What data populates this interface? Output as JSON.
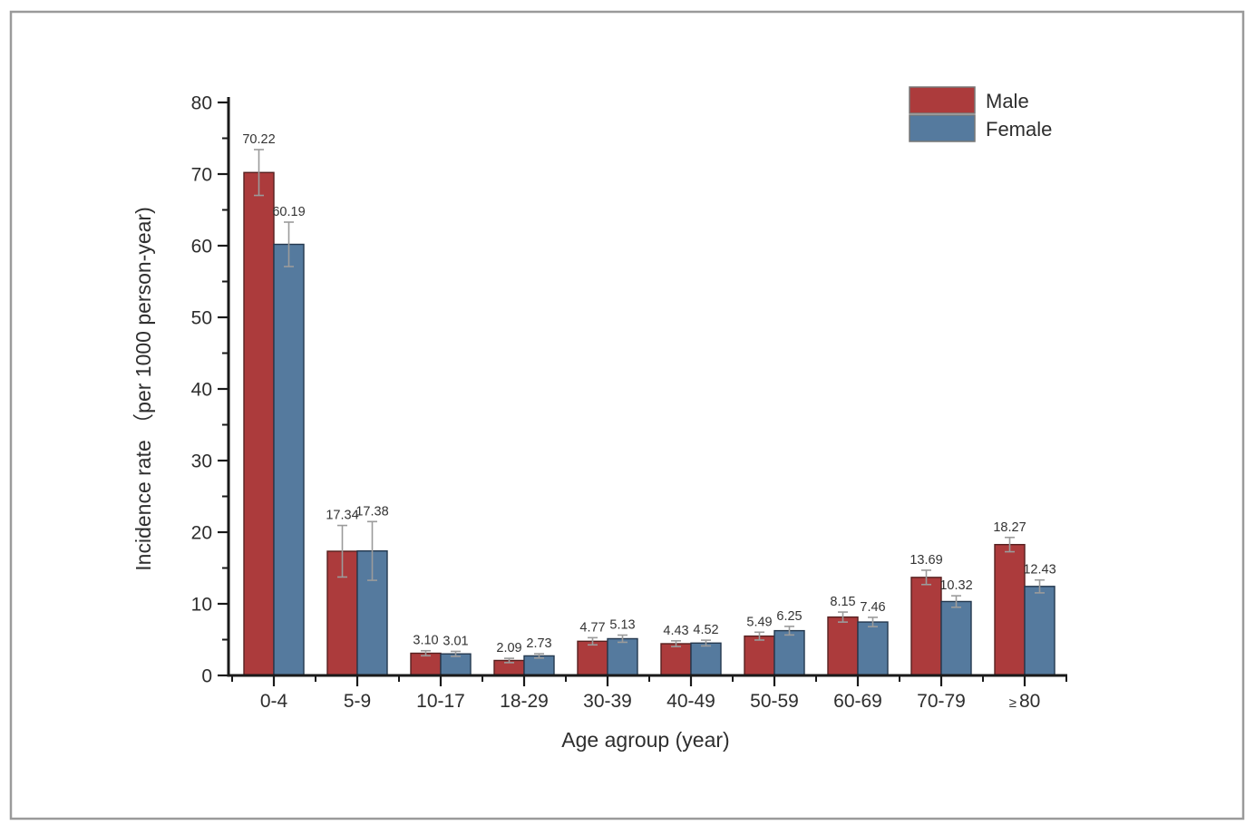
{
  "figure": {
    "border_color": "#9a9a9a",
    "background": "#ffffff"
  },
  "chart_data": {
    "type": "bar",
    "title": "",
    "xlabel": "Age agroup (year)",
    "ylabel": "Incidence rate （per 1000 person-year)",
    "categories": [
      "0-4",
      "5-9",
      "10-17",
      "18-29",
      "30-39",
      "40-49",
      "50-59",
      "60-69",
      "70-79",
      "≥80"
    ],
    "series": [
      {
        "name": "Male",
        "color": "#AC3B3C",
        "edge_color": "#56201f",
        "values": [
          70.22,
          17.34,
          3.1,
          2.09,
          4.77,
          4.43,
          5.49,
          8.15,
          13.69,
          18.27
        ],
        "value_labels": [
          "70.22",
          "17.34",
          "3.10",
          "2.09",
          "4.77",
          "4.43",
          "5.49",
          "8.15",
          "13.69",
          "18.27"
        ],
        "errors": [
          3.2,
          3.6,
          0.35,
          0.3,
          0.5,
          0.4,
          0.55,
          0.7,
          1.0,
          1.0
        ]
      },
      {
        "name": "Female",
        "color": "#557A9E",
        "edge_color": "#24384e",
        "values": [
          60.19,
          17.38,
          3.01,
          2.73,
          5.13,
          4.52,
          6.25,
          7.46,
          10.32,
          12.43
        ],
        "value_labels": [
          "60.19",
          "17.38",
          "3.01",
          "2.73",
          "5.13",
          "4.52",
          "6.25",
          "7.46",
          "10.32",
          "12.43"
        ],
        "errors": [
          3.1,
          4.1,
          0.35,
          0.3,
          0.5,
          0.4,
          0.6,
          0.65,
          0.8,
          0.9
        ]
      }
    ],
    "ylim": [
      0,
      80
    ],
    "ytick_major_step": 10,
    "ytick_minor_step": 5,
    "ytick_labels": [
      "0",
      "10",
      "20",
      "30",
      "40",
      "50",
      "60",
      "70",
      "80"
    ],
    "grid": false,
    "error_bars": true,
    "legend_position": "top-right",
    "error_bar_color": "#9b9b9b",
    "axis_color": "#1a1a1a"
  }
}
